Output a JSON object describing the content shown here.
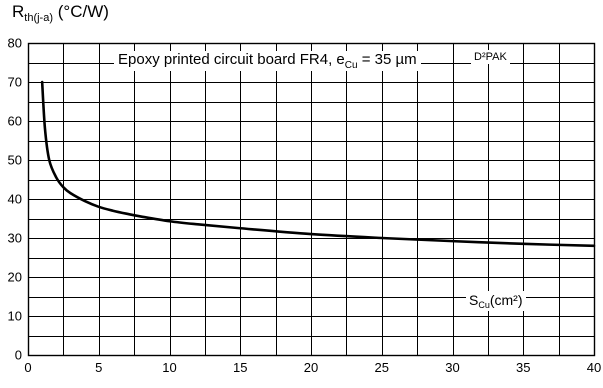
{
  "chart_data": {
    "type": "line",
    "title": "",
    "ylabel": {
      "main": "R",
      "sub": "th(j-a)",
      "unit": " (°C/W)"
    },
    "xlabel": {
      "main": "S",
      "sub": "Cu",
      "unit": "(cm²)"
    },
    "annotation": {
      "text": "Epoxy printed circuit board FR4, e",
      "sub": "Cu",
      "rest": " = 35 µm"
    },
    "series": [
      {
        "name": "D²PAK",
        "x": [
          1,
          1.2,
          1.5,
          2,
          2.5,
          3,
          4,
          5,
          6,
          7,
          8,
          10,
          12,
          15,
          20,
          25,
          30,
          35,
          40
        ],
        "y": [
          70,
          58,
          50,
          45.5,
          43,
          41.5,
          39.5,
          38,
          37,
          36.2,
          35.5,
          34.3,
          33.5,
          32.5,
          31,
          30,
          29.2,
          28.5,
          28
        ]
      }
    ],
    "xlim": [
      0,
      40
    ],
    "ylim": [
      0,
      80
    ],
    "xticks": [
      0,
      5,
      10,
      15,
      20,
      25,
      30,
      35,
      40
    ],
    "yticks": [
      0,
      10,
      20,
      30,
      40,
      50,
      60,
      70,
      80
    ],
    "grid": true
  }
}
